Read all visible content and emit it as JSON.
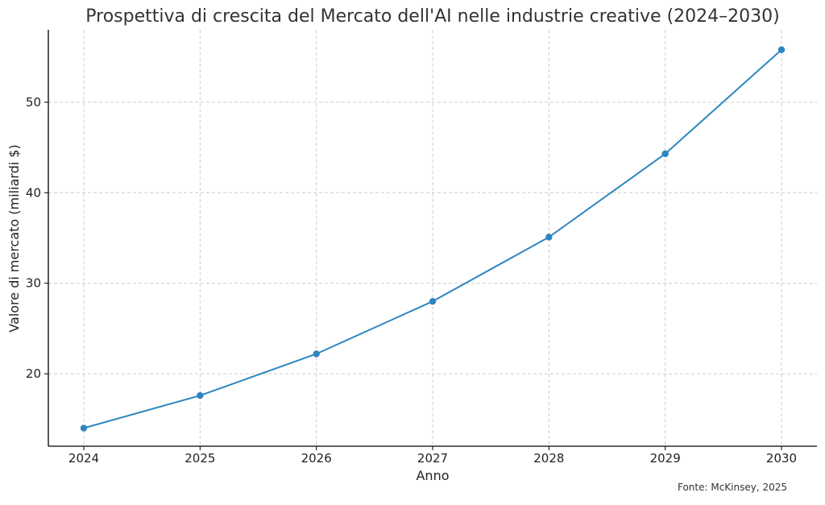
{
  "chart_data": {
    "type": "line",
    "title": "Prospettiva di crescita del Mercato dell'AI nelle industrie creative (2024–2030)",
    "xlabel": "Anno",
    "ylabel": "Valore di mercato (miliardi $)",
    "categories": [
      "2024",
      "2025",
      "2026",
      "2027",
      "2028",
      "2029",
      "2030"
    ],
    "series": [
      {
        "values": [
          14.0,
          17.6,
          22.2,
          28.0,
          35.1,
          44.3,
          55.8
        ],
        "color": "#2e86c1"
      }
    ],
    "ylim": [
      12,
      58
    ],
    "yticks": [
      20,
      30,
      40,
      50
    ],
    "grid": true,
    "markers": true
  },
  "source_note": "Fonte: McKinsey, 2025"
}
